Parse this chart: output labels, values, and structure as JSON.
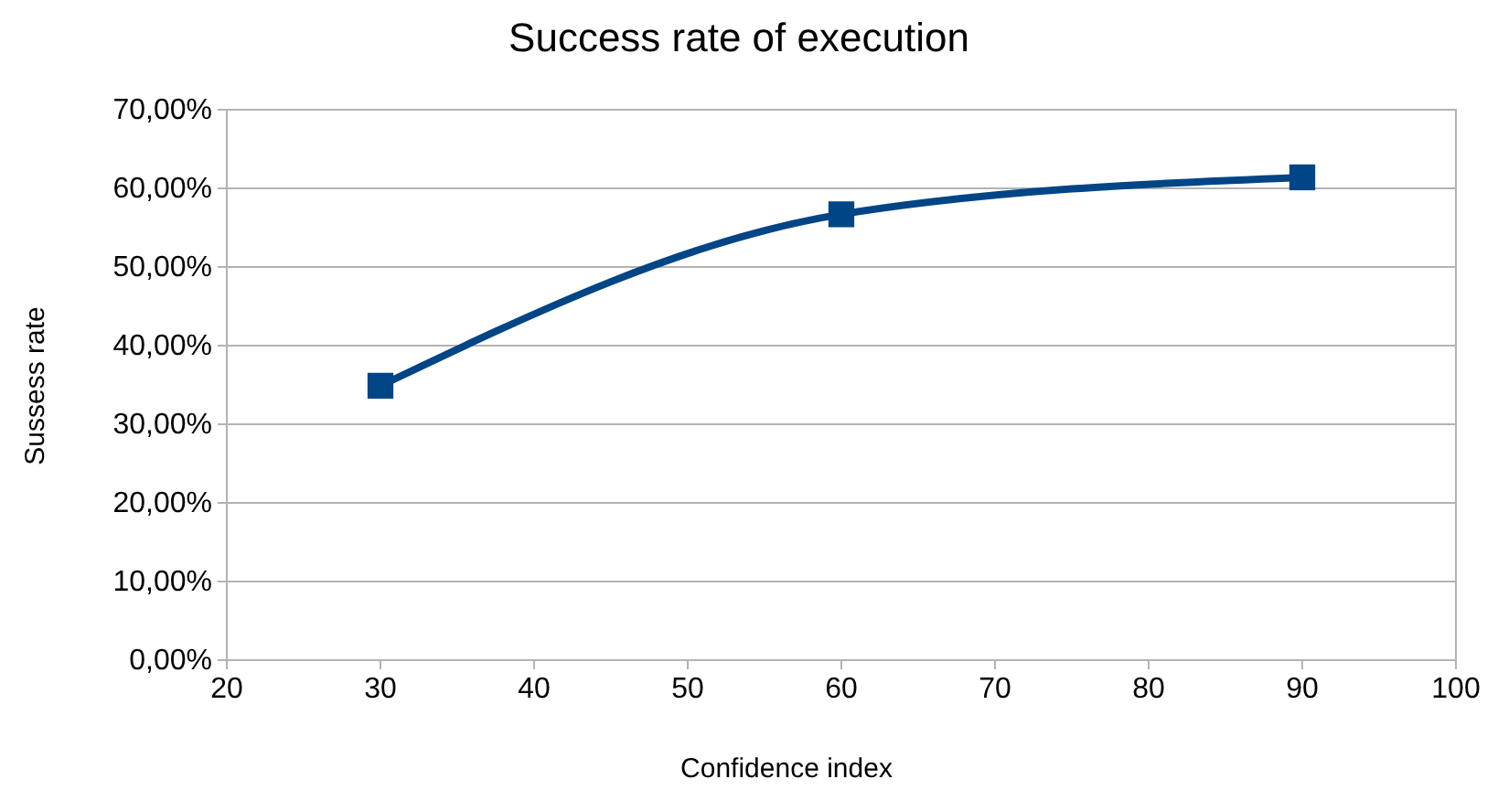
{
  "chart_data": {
    "type": "line",
    "title": "Success rate of execution",
    "xlabel": "Confidence index",
    "ylabel": "Sussess rate",
    "x": [
      30,
      60,
      90
    ],
    "series": [
      {
        "color": "#004586",
        "values": [
          34.9,
          56.7,
          61.4
        ]
      }
    ],
    "xlim": [
      20,
      100
    ],
    "xticks": [
      20,
      30,
      40,
      50,
      60,
      70,
      80,
      90,
      100
    ],
    "ylim": [
      0,
      70
    ],
    "yticks": [
      {
        "value": 0,
        "label": "0,00%"
      },
      {
        "value": 10,
        "label": "10,00%"
      },
      {
        "value": 20,
        "label": "20,00%"
      },
      {
        "value": 30,
        "label": "30,00%"
      },
      {
        "value": 40,
        "label": "40,00%"
      },
      {
        "value": 50,
        "label": "50,00%"
      },
      {
        "value": 60,
        "label": "60,00%"
      },
      {
        "value": 70,
        "label": "70,00%"
      }
    ],
    "grid": "y",
    "marker": "square",
    "line_style": "solid"
  }
}
